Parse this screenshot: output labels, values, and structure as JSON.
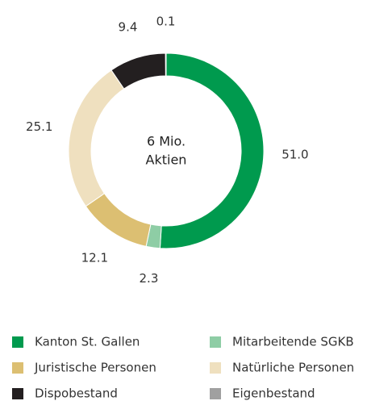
{
  "chart_data": {
    "type": "donut",
    "center_label": [
      "6 Mio.",
      "Aktien"
    ],
    "categories": [
      "Kanton St. Gallen",
      "Mitarbeitende SGKB",
      "Juristische Personen",
      "Natürliche Personen",
      "Dispobestand",
      "Eigenbestand"
    ],
    "values": [
      51.0,
      2.3,
      12.1,
      25.1,
      9.4,
      0.1
    ],
    "value_labels": [
      "51.0",
      "2.3",
      "12.1",
      "25.1",
      "9.4",
      "0.1"
    ],
    "colors": [
      "#009a4e",
      "#8ecda5",
      "#dcbf72",
      "#efe0bf",
      "#231f20",
      "#a0a0a0"
    ]
  }
}
